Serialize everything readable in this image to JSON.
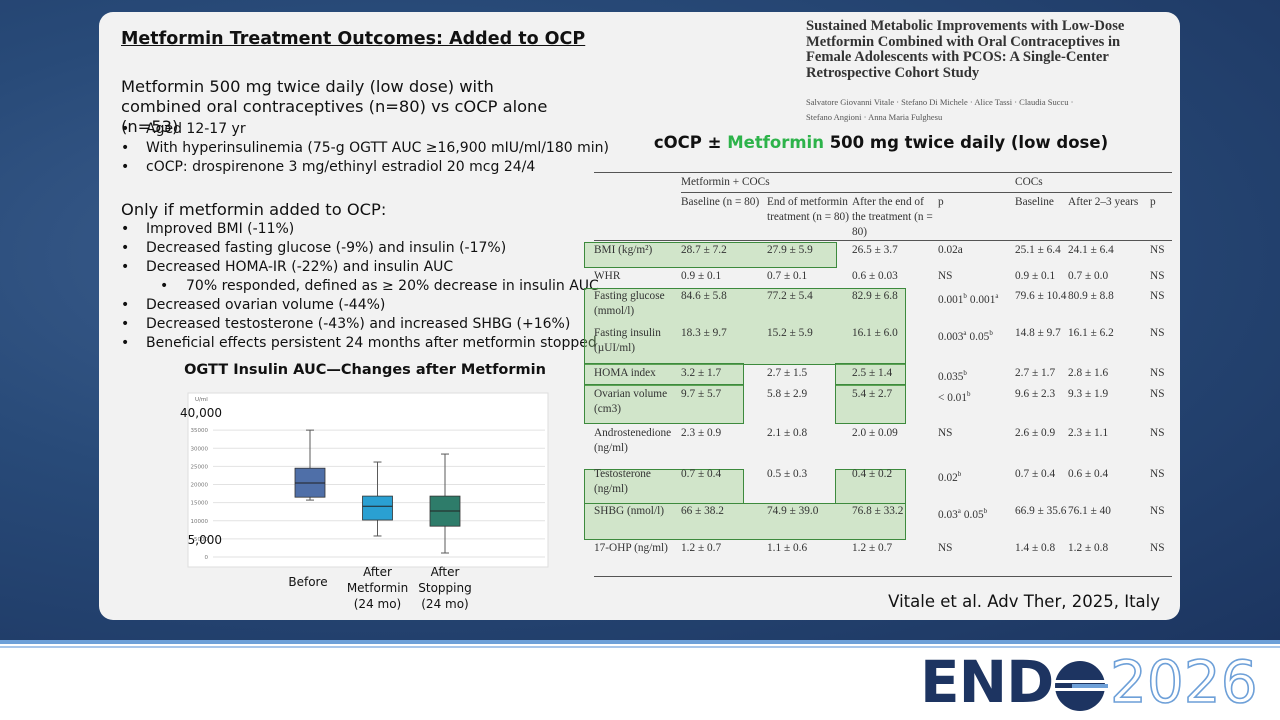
{
  "slide": {
    "title": "Metformin Treatment Outcomes: Added to OCP",
    "intro": "Metformin 500 mg twice daily (low dose) with combined oral contraceptives (n=80) vs cOCP alone (n=53)",
    "intro_bullets": [
      "Aged 12-17 yr",
      "With hyperinsulinemia (75-g OGTT AUC ≥16,900 mIU/ml/180 min)",
      "cOCP: drospirenone 3 mg/ethinyl estradiol 20 mcg 24/4"
    ],
    "heading": "Only if metformin added to OCP:",
    "bullets": [
      {
        "text": "Improved BMI (-11%)"
      },
      {
        "text": "Decreased fasting glucose (-9%) and insulin (-17%)"
      },
      {
        "text": "Decreased HOMA-IR (-22%) and insulin AUC",
        "sub": [
          "70% responded, defined as ≥ 20% decrease in insulin AUC"
        ]
      },
      {
        "text": "Decreased ovarian volume (-44%)"
      },
      {
        "text": "Decreased testosterone (-43%) and increased SHBG (+16%)"
      },
      {
        "text": "Beneficial effects persistent 24 months after metformin stopped"
      }
    ],
    "paper_title": "Sustained Metabolic Improvements with Low-Dose Metformin Combined with Oral Contraceptives in Female Adolescents with PCOS: A Single-Center Retrospective Cohort Study",
    "paper_authors": "Salvatore Giovanni Vitale · Stefano Di Michele · Alice Tassi · Claudia Succu · Stefano Angioni · Anna Maria Fulghesu",
    "table_title": [
      "cOCP ± ",
      "Metformin",
      " 500 mg twice daily (low dose)"
    ],
    "citation": "Vitale et al. Adv Ther, 2025, Italy"
  },
  "chart_data": {
    "type": "box",
    "title": "OGTT Insulin AUC—Changes after Metformin",
    "y_unit": "U/ml",
    "annotations": [
      {
        "value": 40000,
        "label": "40,000"
      },
      {
        "value": 5000,
        "label": "5,000"
      }
    ],
    "categories": [
      "Before",
      "After Metformin (24 mo)",
      "After Stopping (24 mo)"
    ],
    "boxes": [
      {
        "color": "#4f6fa8",
        "min": 15700,
        "q1": 16500,
        "median": 20400,
        "q3": 24500,
        "max": 35000
      },
      {
        "color": "#2aa0d2",
        "min": 5800,
        "q1": 10200,
        "median": 14000,
        "q3": 16800,
        "max": 26200
      },
      {
        "color": "#2e7c6a",
        "min": 1100,
        "q1": 8500,
        "median": 12700,
        "q3": 16800,
        "max": 28400
      }
    ],
    "ylim": [
      0,
      40000
    ],
    "yticks": [
      0,
      5000,
      10000,
      15000,
      20000,
      25000,
      30000,
      35000
    ],
    "grid": true
  },
  "table": {
    "group_headers": [
      "Metformin + COCs",
      "COCs"
    ],
    "columns": [
      "Baseline (n = 80)",
      "End of metformin treatment (n = 80)",
      "After the end of the treatment (n = 80)",
      "p",
      "Baseline",
      "After 2–3 years",
      "p"
    ],
    "rows": [
      {
        "label": "BMI (kg/m²)",
        "cells": [
          "28.7 ± 7.2",
          "27.9 ± 5.9",
          "26.5 ± 3.7",
          "0.02a",
          "25.1 ± 6.4",
          "24.1 ± 6.4",
          "NS"
        ]
      },
      {
        "label": "WHR",
        "cells": [
          "0.9 ± 0.1",
          "0.7 ± 0.1",
          "0.6 ± 0.03",
          "NS",
          "0.9 ± 0.1",
          "0.7 ± 0.0",
          "NS"
        ]
      },
      {
        "label": "Fasting glucose (mmol/l)",
        "cells": [
          "84.6 ± 5.8",
          "77.2 ± 5.4",
          "82.9 ± 6.8",
          [
            {
              "text": "0.001",
              "sup": "b"
            },
            {
              "text": "0.001",
              "sup": "a"
            }
          ],
          "79.6 ± 10.4",
          "80.9 ± 8.8",
          "NS"
        ]
      },
      {
        "label": "Fasting insulin (µUI/ml)",
        "cells": [
          "18.3 ± 9.7",
          "15.2 ± 5.9",
          "16.1 ± 6.0",
          [
            {
              "text": "0.003",
              "sup": "a"
            },
            {
              "text": "0.05",
              "sup": "b"
            }
          ],
          "14.8 ± 9.7",
          "16.1 ± 6.2",
          "NS"
        ]
      },
      {
        "label": "HOMA index",
        "cells": [
          "3.2 ± 1.7",
          "2.7 ± 1.5",
          "2.5 ± 1.4",
          [
            {
              "text": "0.035",
              "sup": "b"
            }
          ],
          "2.7 ± 1.7",
          "2.8 ± 1.6",
          "NS"
        ]
      },
      {
        "label": "Ovarian volume (cm3)",
        "cells": [
          "9.7 ± 5.7",
          "5.8 ± 2.9",
          "5.4 ± 2.7",
          [
            {
              "text": "< 0.01",
              "sup": "b"
            }
          ],
          "9.6 ± 2.3",
          "9.3 ± 1.9",
          "NS"
        ]
      },
      {
        "label": "Androstenedione (ng/ml)",
        "cells": [
          "2.3 ± 0.9",
          "2.1 ± 0.8",
          "2.0 ± 0.09",
          "NS",
          "2.6 ± 0.9",
          "2.3 ± 1.1",
          "NS"
        ]
      },
      {
        "label": "Testosterone (ng/ml)",
        "cells": [
          "0.7 ± 0.4",
          "0.5 ± 0.3",
          "0.4 ± 0.2",
          [
            {
              "text": "0.02",
              "sup": "b"
            }
          ],
          "0.7 ± 0.4",
          "0.6 ± 0.4",
          "NS"
        ]
      },
      {
        "label": "SHBG (nmol/l)",
        "cells": [
          "66 ± 38.2",
          "74.9 ± 39.0",
          "76.8 ± 33.2",
          [
            {
              "text": "0.03",
              "sup": "a"
            },
            {
              "text": "0.05",
              "sup": "b"
            }
          ],
          "66.9 ± 35.6",
          "76.1 ± 40",
          "NS"
        ]
      },
      {
        "label": "17-OHP (ng/ml)",
        "cells": [
          "1.2 ± 0.7",
          "1.1 ± 0.6",
          "1.2 ± 0.7",
          "NS",
          "1.4 ± 0.8",
          "1.2 ± 0.8",
          "NS"
        ]
      }
    ]
  },
  "logo": {
    "left": "END",
    "right": "2026"
  }
}
